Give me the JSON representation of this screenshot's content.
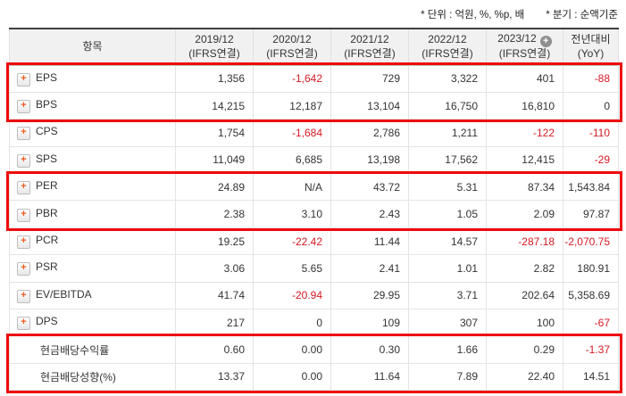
{
  "page": {
    "unit_note": "* 단위 : 억원, %, %p, 배",
    "basis_note": "* 분기 : 순액기준"
  },
  "colors": {
    "negative_text": "#d41a23",
    "highlight_border": "#ee0b0b",
    "expand_icon_orange": "#f05a1e",
    "header_background": "#f1f1f1"
  },
  "table": {
    "header": {
      "item_label": "항목",
      "columns": [
        {
          "year": "2019/12",
          "sub": "(IFRS연결)",
          "has_add_icon": false
        },
        {
          "year": "2020/12",
          "sub": "(IFRS연결)",
          "has_add_icon": false
        },
        {
          "year": "2021/12",
          "sub": "(IFRS연결)",
          "has_add_icon": false
        },
        {
          "year": "2022/12",
          "sub": "(IFRS연결)",
          "has_add_icon": false
        },
        {
          "year": "2023/12",
          "sub": "(IFRS연결)",
          "has_add_icon": true
        }
      ],
      "yoy": {
        "line1": "전년대비",
        "line2": "(YoY)"
      }
    },
    "rows": [
      {
        "key": "eps",
        "label": "EPS",
        "expandable": true,
        "values": [
          "1,356",
          "-1,642",
          "729",
          "3,322",
          "401",
          "-88"
        ]
      },
      {
        "key": "bps",
        "label": "BPS",
        "expandable": true,
        "values": [
          "14,215",
          "12,187",
          "13,104",
          "16,750",
          "16,810",
          "0"
        ]
      },
      {
        "key": "cps",
        "label": "CPS",
        "expandable": true,
        "values": [
          "1,754",
          "-1,684",
          "2,786",
          "1,211",
          "-122",
          "-110"
        ]
      },
      {
        "key": "sps",
        "label": "SPS",
        "expandable": true,
        "values": [
          "11,049",
          "6,685",
          "13,198",
          "17,562",
          "12,415",
          "-29"
        ]
      },
      {
        "key": "per",
        "label": "PER",
        "expandable": true,
        "values": [
          "24.89",
          "N/A",
          "43.72",
          "5.31",
          "87.34",
          "1,543.84"
        ]
      },
      {
        "key": "pbr",
        "label": "PBR",
        "expandable": true,
        "values": [
          "2.38",
          "3.10",
          "2.43",
          "1.05",
          "2.09",
          "97.87"
        ]
      },
      {
        "key": "pcr",
        "label": "PCR",
        "expandable": true,
        "values": [
          "19.25",
          "-22.42",
          "11.44",
          "14.57",
          "-287.18",
          "-2,070.75"
        ]
      },
      {
        "key": "psr",
        "label": "PSR",
        "expandable": true,
        "values": [
          "3.06",
          "5.65",
          "2.41",
          "1.01",
          "2.82",
          "180.91"
        ]
      },
      {
        "key": "ev-ebitda",
        "label": "EV/EBITDA",
        "expandable": true,
        "values": [
          "41.74",
          "-20.94",
          "29.95",
          "3.71",
          "202.64",
          "5,358.69"
        ]
      },
      {
        "key": "dps",
        "label": "DPS",
        "expandable": true,
        "values": [
          "217",
          "0",
          "109",
          "307",
          "100",
          "-67"
        ]
      },
      {
        "key": "cash-dividend-yield",
        "label": "현금배당수익률",
        "expandable": false,
        "values": [
          "0.60",
          "0.00",
          "0.30",
          "1.66",
          "0.29",
          "-1.37"
        ]
      },
      {
        "key": "cash-dividend-payout",
        "label": "현금배당성향(%)",
        "expandable": false,
        "values": [
          "13.37",
          "0.00",
          "11.64",
          "7.89",
          "22.40",
          "14.51"
        ]
      }
    ]
  }
}
